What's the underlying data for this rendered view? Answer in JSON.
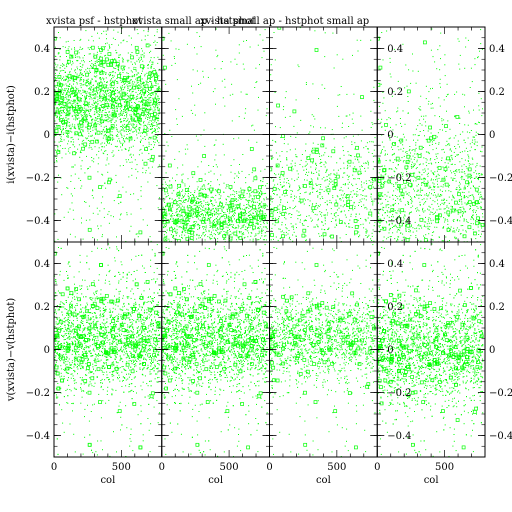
{
  "titles": [
    "xvista psf - hstphot",
    "xvista small ap - hstphot",
    "xvista small ap - hstphot small ap"
  ],
  "chart_data": {
    "type": "scatter",
    "layout": "2x4 grid of scatter panels sharing axes",
    "point_color": "#00ff00",
    "xlabel": "col",
    "ylabels": [
      "i(xvista)−i(hstphot)",
      "v(xvista)−v(hstphot)"
    ],
    "xlim": [
      0,
      800
    ],
    "ylim": [
      -0.5,
      0.5
    ],
    "xticks": [
      "0",
      "500"
    ],
    "yticks": [
      "-0.4",
      "-0.2",
      "0",
      "0.2",
      "0.4"
    ],
    "panels": [
      {
        "row": 0,
        "col": 0,
        "zero_line": false,
        "left_axis_labels": true,
        "right_axis_labels": false,
        "density": "very dense",
        "center": 0.15,
        "spread": 0.12
      },
      {
        "row": 0,
        "col": 1,
        "zero_line": true,
        "left_axis_labels": false,
        "right_axis_labels": false,
        "density": "dense",
        "center": -0.38,
        "spread": 0.08
      },
      {
        "row": 0,
        "col": 2,
        "zero_line": true,
        "left_axis_labels": false,
        "right_axis_labels": false,
        "density": "medium",
        "center": -0.3,
        "spread": 0.15
      },
      {
        "row": 0,
        "col": 3,
        "zero_line": false,
        "left_axis_labels": true,
        "right_axis_labels": true,
        "density": "dense",
        "center": -0.3,
        "spread": 0.2
      },
      {
        "row": 1,
        "col": 0,
        "zero_line": false,
        "left_axis_labels": true,
        "right_axis_labels": false,
        "density": "very dense",
        "center": 0.05,
        "spread": 0.12
      },
      {
        "row": 1,
        "col": 1,
        "zero_line": false,
        "left_axis_labels": false,
        "right_axis_labels": false,
        "density": "very dense",
        "center": 0.05,
        "spread": 0.12
      },
      {
        "row": 1,
        "col": 2,
        "zero_line": false,
        "left_axis_labels": false,
        "right_axis_labels": false,
        "density": "dense",
        "center": 0.05,
        "spread": 0.1
      },
      {
        "row": 1,
        "col": 3,
        "zero_line": false,
        "left_axis_labels": true,
        "right_axis_labels": true,
        "density": "very dense",
        "center": 0.0,
        "spread": 0.13
      }
    ]
  }
}
